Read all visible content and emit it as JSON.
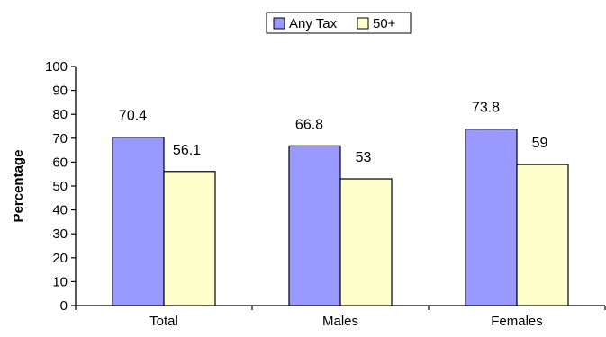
{
  "chart_data": {
    "type": "bar",
    "title": "",
    "xlabel": "",
    "ylabel": "Percentage",
    "ylim": [
      0,
      100
    ],
    "ytick_step": 10,
    "categories": [
      "Total",
      "Males",
      "Females"
    ],
    "series": [
      {
        "name": "Any Tax",
        "values": [
          70.4,
          66.8,
          73.8
        ],
        "color": "#9999ff"
      },
      {
        "name": "50+",
        "values": [
          56.1,
          53,
          59
        ],
        "color": "#ffffcc"
      }
    ],
    "data_labels": [
      [
        "70.4",
        "66.8",
        "73.8"
      ],
      [
        "56.1",
        "53",
        "59"
      ]
    ],
    "legend_position": "top-center",
    "grid": false
  }
}
